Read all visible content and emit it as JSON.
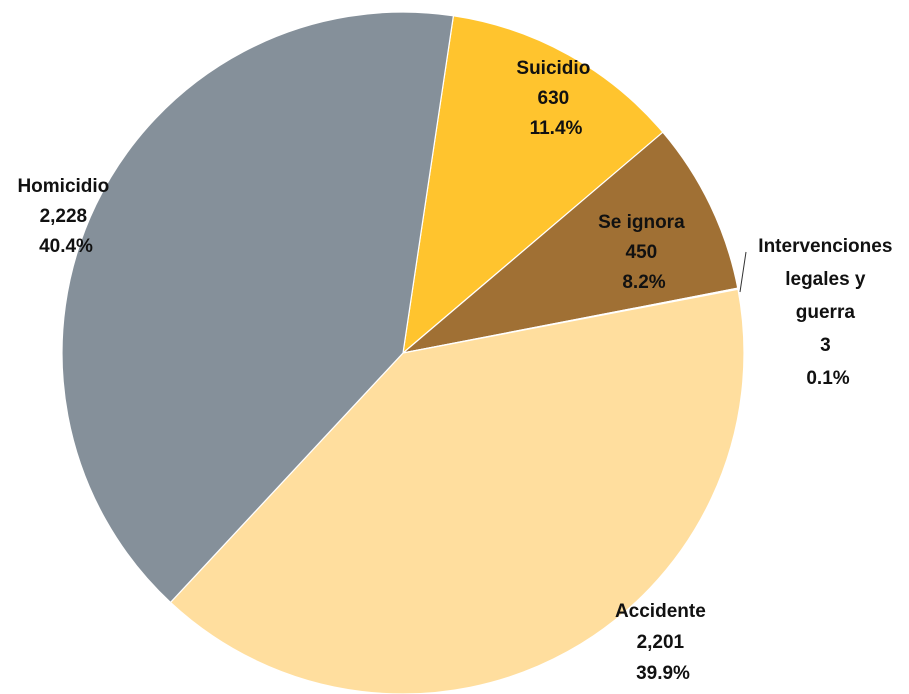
{
  "chart_data": {
    "type": "pie",
    "title": "",
    "slices": [
      {
        "label": "Suicidio",
        "value": 630,
        "value_text": "630",
        "percent": "11.4%",
        "color": "#FFC42E"
      },
      {
        "label": "Se ignora",
        "value": 450,
        "value_text": "450",
        "percent": "8.2%",
        "color": "#A07034"
      },
      {
        "label": "Intervenciones legales y guerra",
        "label_lines": [
          "Intervenciones",
          "legales y",
          "guerra"
        ],
        "value": 3,
        "value_text": "3",
        "percent": "0.1%",
        "color": "#5C4A2A"
      },
      {
        "label": "Accidente",
        "value": 2201,
        "value_text": "2,201",
        "percent": "39.9%",
        "color": "#FFDE9E"
      },
      {
        "label": "Homicidio",
        "value": 2228,
        "value_text": "2,228",
        "percent": "40.4%",
        "color": "#85909A"
      }
    ],
    "start_angle_deg": 8.5,
    "direction": "clockwise",
    "legend": "none",
    "labels": "data labels with category, value and percent"
  }
}
